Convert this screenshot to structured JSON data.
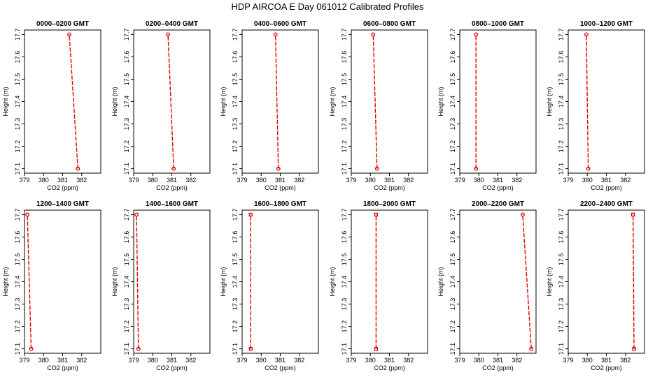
{
  "figure": {
    "title": "HDP  AIRCOA E  Day 061012  Calibrated Profiles"
  },
  "chart_data": [
    {
      "type": "line",
      "title": "0000–0200 GMT",
      "xlabel": "CO2 (ppm)",
      "ylabel": "Height (m)",
      "xlim": [
        379,
        383
      ],
      "ylim": [
        17.08,
        17.72
      ],
      "x_ticks": [
        "379",
        "380",
        "381",
        "382"
      ],
      "y_ticks": [
        "17.1",
        "17.2",
        "17.3",
        "17.4",
        "17.5",
        "17.6",
        "17.7"
      ],
      "series": [
        {
          "x": [
            381.8,
            381.35
          ],
          "y": [
            17.1,
            17.7
          ],
          "marker": "circle"
        }
      ]
    },
    {
      "type": "line",
      "title": "0200–0400 GMT",
      "xlabel": "CO2 (ppm)",
      "ylabel": "Height (m)",
      "xlim": [
        379,
        383
      ],
      "ylim": [
        17.08,
        17.72
      ],
      "x_ticks": [
        "379",
        "380",
        "381",
        "382"
      ],
      "y_ticks": [
        "17.1",
        "17.2",
        "17.3",
        "17.4",
        "17.5",
        "17.6",
        "17.7"
      ],
      "series": [
        {
          "x": [
            381.1,
            380.8
          ],
          "y": [
            17.1,
            17.7
          ],
          "marker": "circle"
        }
      ]
    },
    {
      "type": "line",
      "title": "0400–0600 GMT",
      "xlabel": "CO2 (ppm)",
      "ylabel": "Height (m)",
      "xlim": [
        379,
        383
      ],
      "ylim": [
        17.08,
        17.72
      ],
      "x_ticks": [
        "379",
        "380",
        "381",
        "382"
      ],
      "y_ticks": [
        "17.1",
        "17.2",
        "17.3",
        "17.4",
        "17.5",
        "17.6",
        "17.7"
      ],
      "series": [
        {
          "x": [
            380.9,
            380.75
          ],
          "y": [
            17.1,
            17.7
          ],
          "marker": "circle"
        }
      ]
    },
    {
      "type": "line",
      "title": "0600–0800 GMT",
      "xlabel": "CO2 (ppm)",
      "ylabel": "Height (m)",
      "xlim": [
        379,
        383
      ],
      "ylim": [
        17.08,
        17.72
      ],
      "x_ticks": [
        "379",
        "380",
        "381",
        "382"
      ],
      "y_ticks": [
        "17.1",
        "17.2",
        "17.3",
        "17.4",
        "17.5",
        "17.6",
        "17.7"
      ],
      "series": [
        {
          "x": [
            380.35,
            380.15
          ],
          "y": [
            17.1,
            17.7
          ],
          "marker": "circle"
        }
      ]
    },
    {
      "type": "line",
      "title": "0800–1000 GMT",
      "xlabel": "CO2 (ppm)",
      "ylabel": "Height (m)",
      "xlim": [
        379,
        383
      ],
      "ylim": [
        17.08,
        17.72
      ],
      "x_ticks": [
        "379",
        "380",
        "381",
        "382"
      ],
      "y_ticks": [
        "17.1",
        "17.2",
        "17.3",
        "17.4",
        "17.5",
        "17.6",
        "17.7"
      ],
      "series": [
        {
          "x": [
            379.85,
            379.85
          ],
          "y": [
            17.1,
            17.7
          ],
          "marker": "circle"
        }
      ]
    },
    {
      "type": "line",
      "title": "1000–1200 GMT",
      "xlabel": "CO2 (ppm)",
      "ylabel": "Height (m)",
      "xlim": [
        379,
        383
      ],
      "ylim": [
        17.08,
        17.72
      ],
      "x_ticks": [
        "379",
        "380",
        "381",
        "382"
      ],
      "y_ticks": [
        "17.1",
        "17.2",
        "17.3",
        "17.4",
        "17.5",
        "17.6",
        "17.7"
      ],
      "series": [
        {
          "x": [
            380.05,
            379.95
          ],
          "y": [
            17.1,
            17.7
          ],
          "marker": "circle"
        }
      ]
    },
    {
      "type": "line",
      "title": "1200–1400 GMT",
      "xlabel": "CO2 (ppm)",
      "ylabel": "Height (m)",
      "xlim": [
        379,
        383
      ],
      "ylim": [
        17.08,
        17.72
      ],
      "x_ticks": [
        "379",
        "380",
        "381",
        "382"
      ],
      "y_ticks": [
        "17.1",
        "17.2",
        "17.3",
        "17.4",
        "17.5",
        "17.6",
        "17.7"
      ],
      "series": [
        {
          "x": [
            379.35,
            379.15
          ],
          "y": [
            17.1,
            17.7
          ],
          "marker": "circle"
        }
      ]
    },
    {
      "type": "line",
      "title": "1400–1600 GMT",
      "xlabel": "CO2 (ppm)",
      "ylabel": "Height (m)",
      "xlim": [
        379,
        383
      ],
      "ylim": [
        17.08,
        17.72
      ],
      "x_ticks": [
        "379",
        "380",
        "381",
        "382"
      ],
      "y_ticks": [
        "17.1",
        "17.2",
        "17.3",
        "17.4",
        "17.5",
        "17.6",
        "17.7"
      ],
      "series": [
        {
          "x": [
            379.25,
            379.15
          ],
          "y": [
            17.1,
            17.7
          ],
          "marker": "circle"
        }
      ]
    },
    {
      "type": "line",
      "title": "1600–1800 GMT",
      "xlabel": "CO2 (ppm)",
      "ylabel": "Height (m)",
      "xlim": [
        379,
        383
      ],
      "ylim": [
        17.08,
        17.72
      ],
      "x_ticks": [
        "379",
        "380",
        "381",
        "382"
      ],
      "y_ticks": [
        "17.1",
        "17.2",
        "17.3",
        "17.4",
        "17.5",
        "17.6",
        "17.7"
      ],
      "series": [
        {
          "x": [
            379.45,
            379.45
          ],
          "y": [
            17.1,
            17.7
          ],
          "marker": "square"
        }
      ]
    },
    {
      "type": "line",
      "title": "1800–2000 GMT",
      "xlabel": "CO2 (ppm)",
      "ylabel": "Height (m)",
      "xlim": [
        379,
        383
      ],
      "ylim": [
        17.08,
        17.72
      ],
      "x_ticks": [
        "379",
        "380",
        "381",
        "382"
      ],
      "y_ticks": [
        "17.1",
        "17.2",
        "17.3",
        "17.4",
        "17.5",
        "17.6",
        "17.7"
      ],
      "series": [
        {
          "x": [
            380.3,
            380.3
          ],
          "y": [
            17.1,
            17.7
          ],
          "marker": "square"
        }
      ]
    },
    {
      "type": "line",
      "title": "2000–2200 GMT",
      "xlabel": "CO2 (ppm)",
      "ylabel": "Height (m)",
      "xlim": [
        379,
        383
      ],
      "ylim": [
        17.08,
        17.72
      ],
      "x_ticks": [
        "379",
        "380",
        "381",
        "382"
      ],
      "y_ticks": [
        "17.1",
        "17.2",
        "17.3",
        "17.4",
        "17.5",
        "17.6",
        "17.7"
      ],
      "series": [
        {
          "x": [
            382.75,
            382.3
          ],
          "y": [
            17.1,
            17.7
          ],
          "marker": "circle"
        }
      ]
    },
    {
      "type": "line",
      "title": "2200–2400 GMT",
      "xlabel": "CO2 (ppm)",
      "ylabel": "Height (m)",
      "xlim": [
        379,
        383
      ],
      "ylim": [
        17.08,
        17.72
      ],
      "x_ticks": [
        "379",
        "380",
        "381",
        "382"
      ],
      "y_ticks": [
        "17.1",
        "17.2",
        "17.3",
        "17.4",
        "17.5",
        "17.6",
        "17.7"
      ],
      "series": [
        {
          "x": [
            382.45,
            382.4
          ],
          "y": [
            17.1,
            17.7
          ],
          "marker": "square"
        }
      ]
    }
  ],
  "colors": {
    "series": "#e00000",
    "axis": "#000000",
    "background": "#ffffff"
  }
}
